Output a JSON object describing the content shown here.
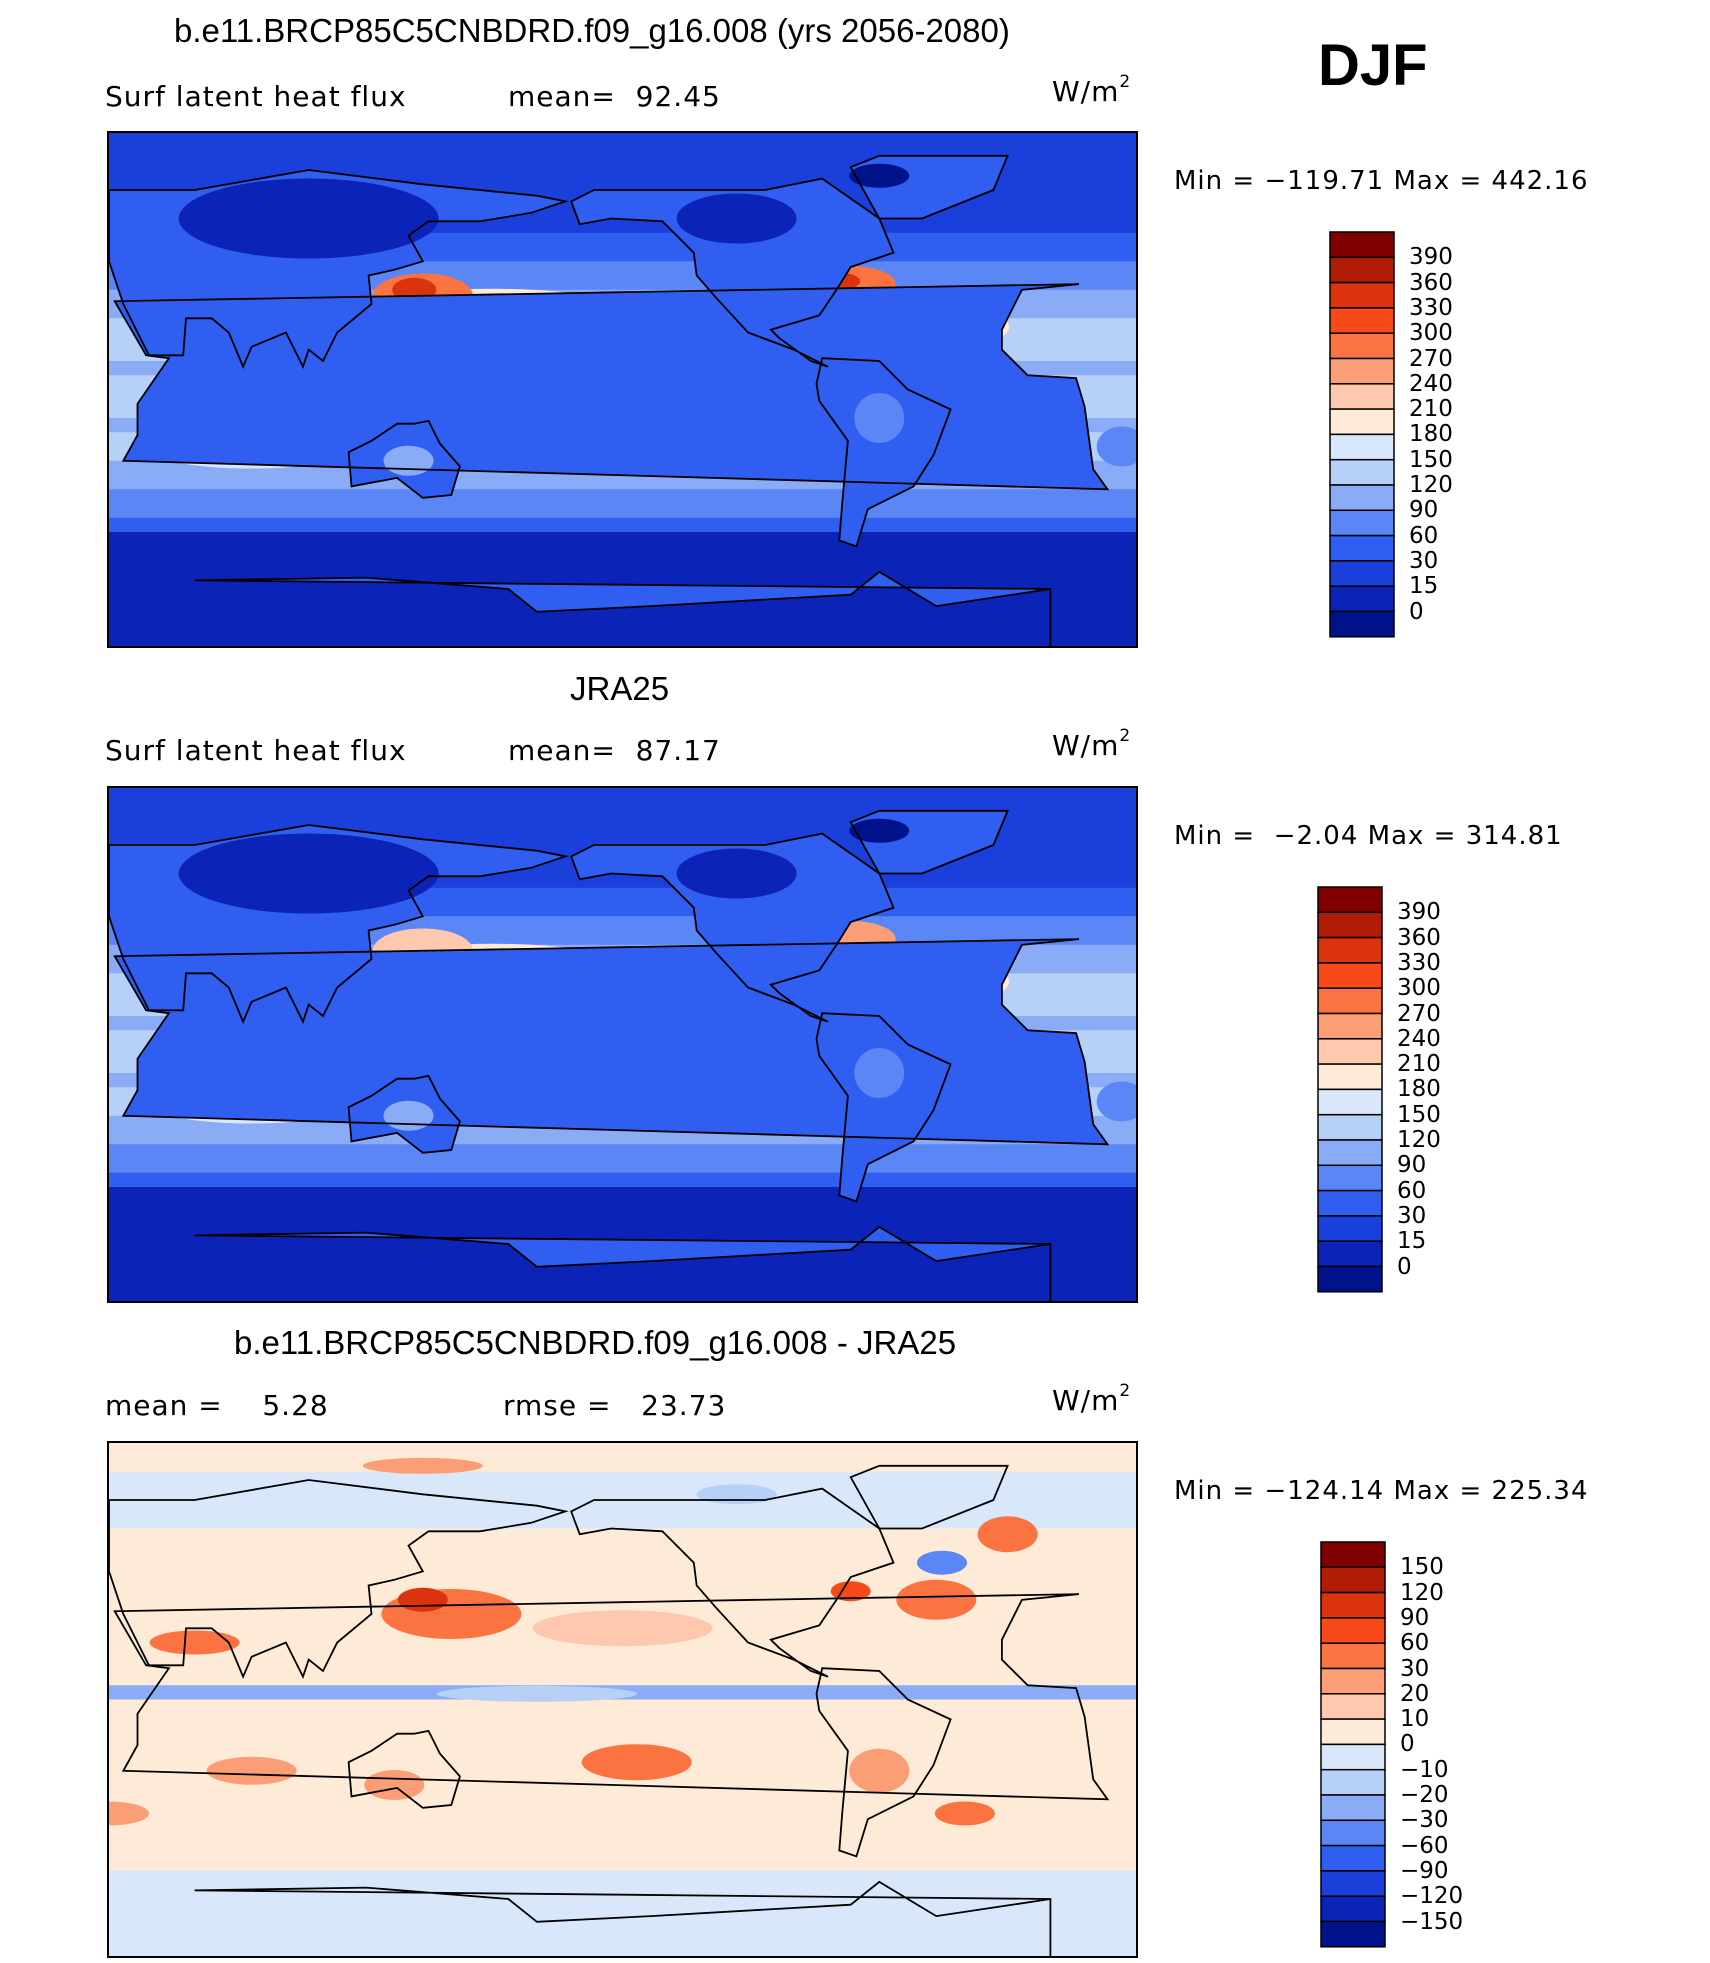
{
  "season": "DJF",
  "panels": [
    {
      "title": "b.e11.BRCP85C5CNBDRD.f09_g16.008 (yrs 2056-2080)",
      "left_text": "Surf latent heat flux",
      "mid_text": "mean=  92.45",
      "units_base": "W/m",
      "units_exp": "2",
      "minmax": "Min = −119.71 Max = 442.16",
      "palette": "abs",
      "colorbar_labels": [
        "390",
        "360",
        "330",
        "300",
        "270",
        "240",
        "210",
        "180",
        "150",
        "120",
        "90",
        "60",
        "30",
        "15",
        "0"
      ]
    },
    {
      "title": "JRA25",
      "left_text": "Surf latent heat flux",
      "mid_text": "mean=  87.17",
      "units_base": "W/m",
      "units_exp": "2",
      "minmax": "Min =  −2.04 Max = 314.81",
      "palette": "abs",
      "colorbar_labels": [
        "390",
        "360",
        "330",
        "300",
        "270",
        "240",
        "210",
        "180",
        "150",
        "120",
        "90",
        "60",
        "30",
        "15",
        "0"
      ]
    },
    {
      "title": "b.e11.BRCP85C5CNBDRD.f09_g16.008 - JRA25",
      "left_text": "mean =    5.28",
      "mid_text": "rmse =   23.73",
      "units_base": "W/m",
      "units_exp": "2",
      "minmax": "Min = −124.14 Max = 225.34",
      "palette": "diff",
      "colorbar_labels": [
        "150",
        "120",
        "90",
        "60",
        "30",
        "20",
        "10",
        "0",
        "−10",
        "−20",
        "−30",
        "−60",
        "−90",
        "−120",
        "−150"
      ]
    }
  ],
  "colors": {
    "abs": [
      "#800000",
      "#b01c06",
      "#db330d",
      "#f84a18",
      "#fb7341",
      "#fb9e76",
      "#fdc8ae",
      "#fdebd8",
      "#d8e8fa",
      "#b7d0f8",
      "#8aacf7",
      "#5a87f5",
      "#2f5ef0",
      "#1a3fdb",
      "#0b23b7",
      "#00128a"
    ],
    "diff": [
      "#800000",
      "#b01c06",
      "#db330d",
      "#f84a18",
      "#fb7341",
      "#fb9e76",
      "#fdc8ae",
      "#fdebd8",
      "#d8e8fa",
      "#b7d0f8",
      "#8aacf7",
      "#5a87f5",
      "#2f5ef0",
      "#1a3fdb",
      "#0b23b7",
      "#00128a"
    ]
  }
}
